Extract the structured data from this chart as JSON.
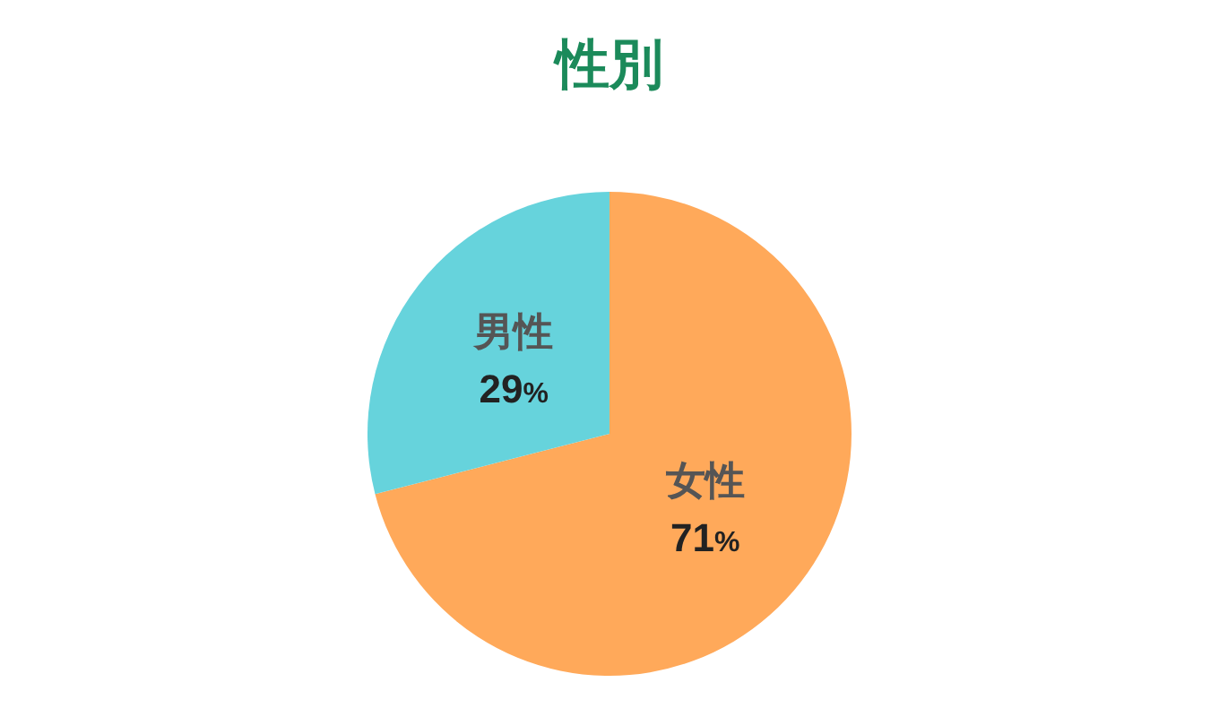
{
  "chart_data": {
    "type": "pie",
    "title": "性別",
    "categories": [
      "女性",
      "男性"
    ],
    "values": [
      71,
      29
    ],
    "colors": [
      "#ffa95a",
      "#66d3dc"
    ],
    "value_labels": [
      "71%",
      "29%"
    ]
  }
}
